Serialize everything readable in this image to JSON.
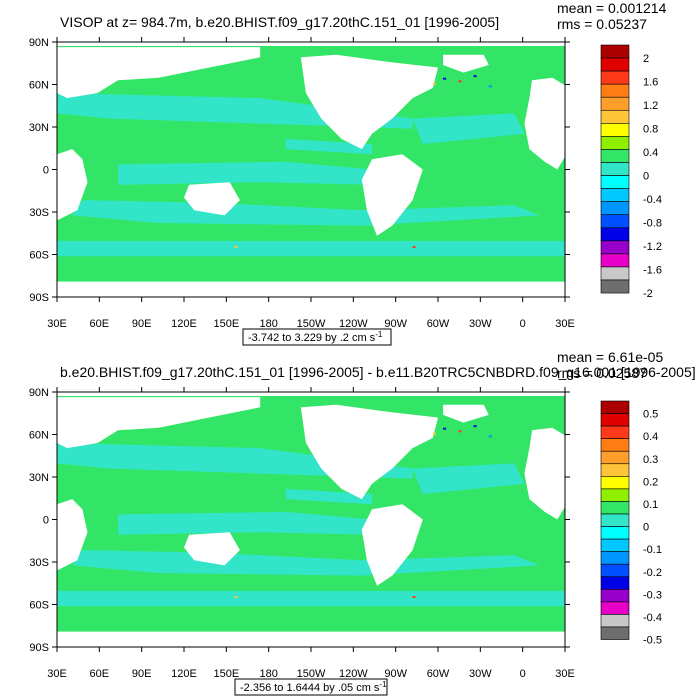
{
  "panels": [
    {
      "title": "VISOP at z= 984.7m, b.e20.BHIST.f09_g17.20thC.151_01 [1996-2005]",
      "mean": "mean = 0.001214",
      "rms": "rms = 0.05237",
      "range_label": "-3.742 to 3.229 by .2 cm s",
      "range_exponent": "-1",
      "colorbar_labels": [
        "2",
        "1.6",
        "1.2",
        "0.8",
        "0.4",
        "0",
        "-0.4",
        "-0.8",
        "-1.2",
        "-1.6",
        "-2"
      ]
    },
    {
      "title": "b.e20.BHIST.f09_g17.20thC.151_01 [1996-2005] - b.e11.B20TRC5CNBDRD.f09_g16.001 [1996-2005]",
      "mean": "mean = 6.61e-05",
      "rms": "rms = 0.02587",
      "range_label": "-2.356 to 1.6444 by .05 cm s",
      "range_exponent": "-1",
      "colorbar_labels": [
        "0.5",
        "0.4",
        "0.3",
        "0.2",
        "0.1",
        "0",
        "-0.1",
        "-0.2",
        "-0.3",
        "-0.4",
        "-0.5"
      ]
    }
  ],
  "lat_labels": [
    "90N",
    "60N",
    "30N",
    "0",
    "30S",
    "60S",
    "90S"
  ],
  "lon_labels": [
    "30E",
    "60E",
    "90E",
    "120E",
    "150E",
    "180",
    "150W",
    "120W",
    "90W",
    "60W",
    "30W",
    "0",
    "30E"
  ],
  "colors": {
    "land": "#ffffff",
    "ocean_base": "#33e566",
    "ocean_neg": "#33e5c8",
    "palette": [
      "#ac0000",
      "#e00000",
      "#ff3a1a",
      "#ff7d14",
      "#ff9e2a",
      "#ffc53a",
      "#ffff00",
      "#90ee00",
      "#33e566",
      "#33e5c8",
      "#00ffff",
      "#00c8ff",
      "#0096ff",
      "#0050ff",
      "#0000e6",
      "#9600c8",
      "#e600c8",
      "#c8c8c8",
      "#6e6e6e"
    ]
  }
}
